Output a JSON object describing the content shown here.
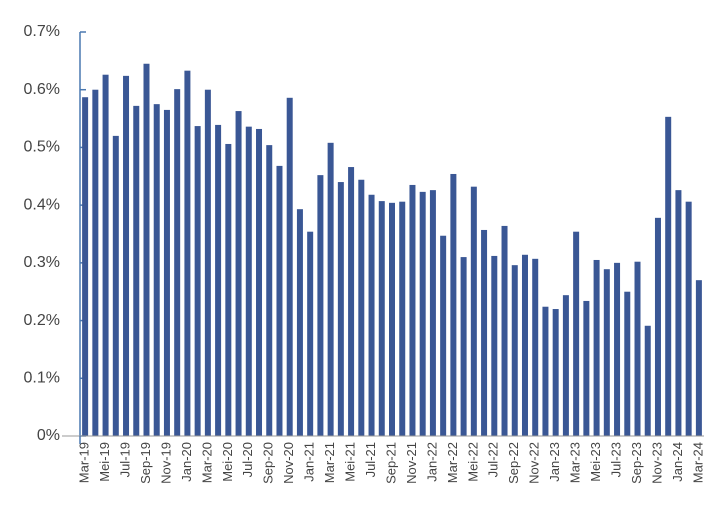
{
  "chart_data": {
    "type": "bar",
    "categories": [
      "Mar-19",
      null,
      "Mei-19",
      null,
      "Jul-19",
      null,
      "Sep-19",
      null,
      "Nov-19",
      null,
      "Jan-20",
      null,
      "Mar-20",
      null,
      "Mei-20",
      null,
      "Jul-20",
      null,
      "Sep-20",
      null,
      "Nov-20",
      null,
      "Jan-21",
      null,
      "Mar-21",
      null,
      "Mei-21",
      null,
      "Jul-21",
      null,
      "Sep-21",
      null,
      "Nov-21",
      null,
      "Jan-22",
      null,
      "Mar-22",
      null,
      "Mei-22",
      null,
      "Jul-22",
      null,
      "Sep-22",
      null,
      "Nov-22",
      null,
      "Jan-23",
      null,
      "Mar-23",
      null,
      "Mei-23",
      null,
      "Jul-23",
      null,
      "Sep-23",
      null,
      "Nov-23",
      null,
      "Jan-24",
      null,
      "Mar-24"
    ],
    "values": [
      0.587,
      0.6,
      0.626,
      0.52,
      0.624,
      0.572,
      0.645,
      0.575,
      0.565,
      0.601,
      0.633,
      0.537,
      0.6,
      0.539,
      0.506,
      0.563,
      0.536,
      0.532,
      0.504,
      0.468,
      0.586,
      0.393,
      0.354,
      0.452,
      0.508,
      0.44,
      0.466,
      0.444,
      0.418,
      0.407,
      0.404,
      0.406,
      0.435,
      0.423,
      0.426,
      0.347,
      0.454,
      0.31,
      0.432,
      0.357,
      0.312,
      0.364,
      0.296,
      0.314,
      0.307,
      0.224,
      0.22,
      0.244,
      0.354,
      0.234,
      0.305,
      0.289,
      0.3,
      0.25,
      0.302,
      0.191,
      0.378,
      0.553,
      0.426,
      0.406,
      0.27
    ],
    "color": "#3a5795",
    "ylim": [
      0,
      0.7
    ],
    "yticks": [
      {
        "value": 0,
        "label": "0%"
      },
      {
        "value": 0.1,
        "label": "0.1%"
      },
      {
        "value": 0.2,
        "label": "0.2%"
      },
      {
        "value": 0.3,
        "label": "0.3%"
      },
      {
        "value": 0.4,
        "label": "0.4%"
      },
      {
        "value": 0.5,
        "label": "0.5%"
      },
      {
        "value": 0.6,
        "label": "0.6%"
      },
      {
        "value": 0.7,
        "label": "0.7%"
      }
    ],
    "grid": false
  }
}
